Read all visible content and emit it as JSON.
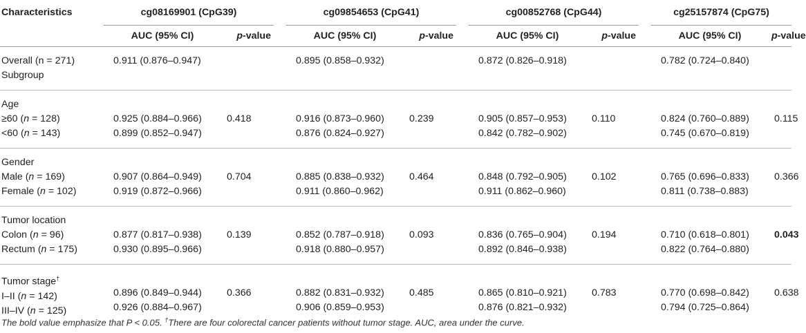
{
  "table": {
    "col_characteristics": "Characteristics",
    "markers": [
      "cg08169901 (CpG39)",
      "cg09854653 (CpG41)",
      "cg00852768 (CpG44)",
      "cg25157874 (CpG75)"
    ],
    "auc_header": "AUC (95% CI)",
    "p_header_italic": "p",
    "p_header_rest": "-value",
    "groups": [
      {
        "labels": [
          "Overall (n = 271)",
          "Subgroup"
        ],
        "aucs": [
          [
            "0.911 (0.876–0.947)"
          ],
          [
            "0.895 (0.858–0.932)"
          ],
          [
            "0.872 (0.826–0.918)"
          ],
          [
            "0.782 (0.724–0.840)"
          ]
        ],
        "pvals": [
          "",
          "",
          "",
          ""
        ]
      },
      {
        "labels": [
          "Age",
          "≥60 (n = 128)",
          "<60 (n = 143)"
        ],
        "aucs": [
          [
            "",
            "0.925 (0.884–0.966)",
            "0.899 (0.852–0.947)"
          ],
          [
            "",
            "0.916 (0.873–0.960)",
            "0.876 (0.824–0.927)"
          ],
          [
            "",
            "0.905 (0.857–0.953)",
            "0.842 (0.782–0.902)"
          ],
          [
            "",
            "0.824 (0.760–0.889)",
            "0.745 (0.670–0.819)"
          ]
        ],
        "pvals": [
          "0.418",
          "0.239",
          "0.110",
          "0.115"
        ]
      },
      {
        "labels": [
          "Gender",
          "Male (n = 169)",
          "Female (n = 102)"
        ],
        "aucs": [
          [
            "",
            "0.907 (0.864–0.949)",
            "0.919 (0.872–0.966)"
          ],
          [
            "",
            "0.885 (0.838–0.932)",
            "0.911 (0.860–0.962)"
          ],
          [
            "",
            "0.848 (0.792–0.905)",
            "0.911 (0.862–0.960)"
          ],
          [
            "",
            "0.765 (0.696–0.833)",
            "0.811 (0.738–0.883)"
          ]
        ],
        "pvals": [
          "0.704",
          "0.464",
          "0.102",
          "0.366"
        ]
      },
      {
        "labels": [
          "Tumor location",
          "Colon (n = 96)",
          "Rectum (n = 175)"
        ],
        "aucs": [
          [
            "",
            "0.877 (0.817–0.938)",
            "0.930 (0.895–0.966)"
          ],
          [
            "",
            "0.852 (0.787–0.918)",
            "0.918 (0.880–0.957)"
          ],
          [
            "",
            "0.836 (0.765–0.904)",
            "0.892 (0.846–0.938)"
          ],
          [
            "",
            "0.710 (0.618–0.801)",
            "0.822 (0.764–0.880)"
          ]
        ],
        "pvals": [
          "0.139",
          "0.093",
          "0.194",
          "0.043"
        ],
        "bold_pval_index": 3
      },
      {
        "labels": [
          "Tumor stage†",
          "I–II (n = 142)",
          "III–IV (n = 125)"
        ],
        "aucs": [
          [
            "",
            "0.896 (0.849–0.944)",
            "0.926 (0.884–0.967)"
          ],
          [
            "",
            "0.882 (0.831–0.932)",
            "0.906 (0.859–0.953)"
          ],
          [
            "",
            "0.865 (0.810–0.921)",
            "0.876 (0.821–0.932)"
          ],
          [
            "",
            "0.770 (0.698–0.842)",
            "0.794 (0.725–0.864)"
          ]
        ],
        "pvals": [
          "0.366",
          "0.485",
          "0.783",
          "0.638"
        ]
      }
    ]
  },
  "footnote": {
    "part1": "The bold value emphasize that P < 0.05. ",
    "dagger": "†",
    "part2": "There are four colorectal cancer patients without tumor stage. AUC, area under the curve."
  }
}
